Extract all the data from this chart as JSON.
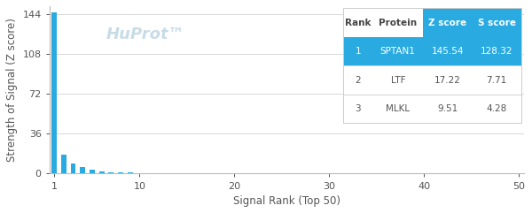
{
  "xlabel": "Signal Rank (Top 50)",
  "ylabel": "Strength of Signal (Z score)",
  "xlim": [
    0.5,
    50.5
  ],
  "ylim": [
    0,
    151
  ],
  "yticks": [
    0,
    36,
    72,
    108,
    144
  ],
  "xticks": [
    1,
    10,
    20,
    30,
    40,
    50
  ],
  "bar_color": "#29ABE2",
  "background_color": "#ffffff",
  "watermark_text": "HuProt™",
  "watermark_color": "#c8dce8",
  "bar_values": [
    145.54,
    17.22,
    9.51,
    5.8,
    3.5,
    2.2,
    1.5,
    1.1,
    0.85,
    0.68,
    0.56,
    0.47,
    0.4,
    0.35,
    0.31,
    0.28,
    0.25,
    0.23,
    0.21,
    0.19,
    0.18,
    0.17,
    0.16,
    0.15,
    0.14,
    0.13,
    0.125,
    0.12,
    0.115,
    0.11,
    0.105,
    0.1,
    0.095,
    0.09,
    0.085,
    0.08,
    0.078,
    0.075,
    0.072,
    0.07,
    0.068,
    0.065,
    0.062,
    0.06,
    0.058,
    0.055,
    0.053,
    0.05,
    0.048,
    0.045
  ],
  "table_data": [
    {
      "rank": "1",
      "protein": "SPTAN1",
      "z_score": "145.54",
      "s_score": "128.32",
      "highlight": true
    },
    {
      "rank": "2",
      "protein": "LTF",
      "z_score": "17.22",
      "s_score": "7.71",
      "highlight": false
    },
    {
      "rank": "3",
      "protein": "MLKL",
      "z_score": "9.51",
      "s_score": "4.28",
      "highlight": false
    }
  ],
  "col_labels": [
    "Rank",
    "Protein",
    "Z score",
    "S score"
  ],
  "table_header_color": "#29ABE2",
  "table_highlight_color": "#29ABE2",
  "table_header_text_color": "#ffffff",
  "table_highlight_text_color": "#ffffff",
  "table_normal_text_color": "#555555",
  "table_header_normal_text_color": "#444444",
  "table_bg_color": "#ffffff",
  "table_sep_color": "#cccccc",
  "grid_color": "#d8d8d8",
  "axis_spine_color": "#bbbbbb",
  "tick_color": "#555555",
  "label_fontsize": 8.5,
  "tick_fontsize": 8,
  "watermark_fontsize": 13,
  "table_fontsize": 7.5
}
